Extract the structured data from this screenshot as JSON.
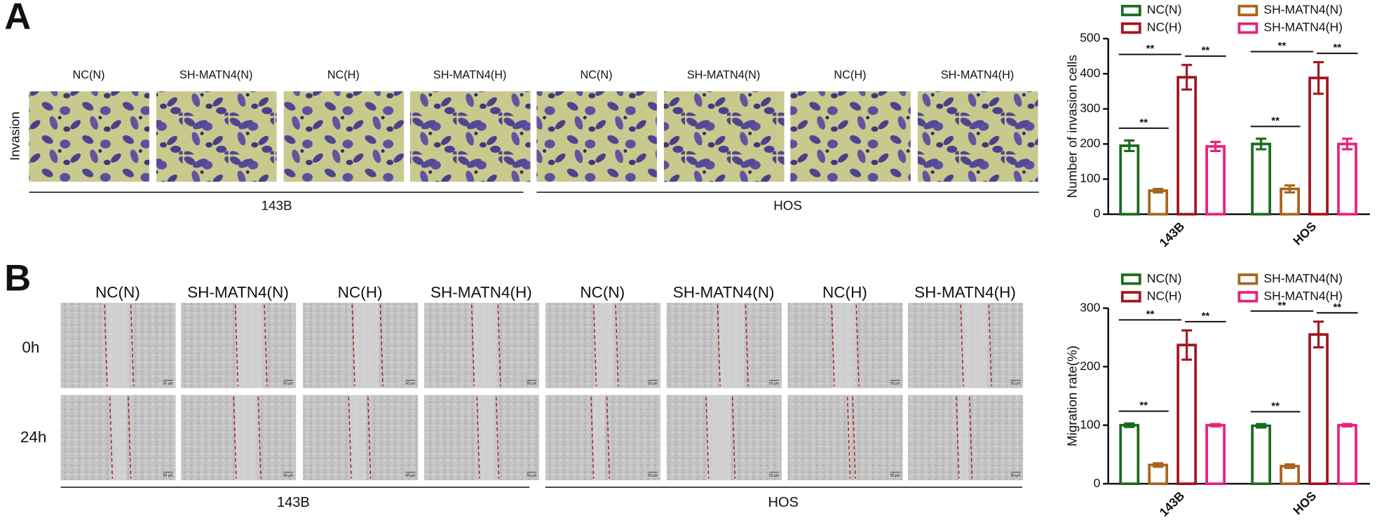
{
  "panel_a": {
    "letter": "A",
    "columns": [
      "NC(N)",
      "SH-MATN4(N)",
      "NC(H)",
      "SH-MATN4(H)",
      "NC(N)",
      "SH-MATN4(N)",
      "NC(H)",
      "SH-MATN4(H)"
    ],
    "row_label": "Invasion",
    "groups": [
      "143B",
      "HOS"
    ]
  },
  "panel_b": {
    "letter": "B",
    "columns": [
      "NC(N)",
      "SH-MATN4(N)",
      "NC(H)",
      "SH-MATN4(H)",
      "NC(N)",
      "SH-MATN4(N)",
      "NC(H)",
      "SH-MATN4(H)"
    ],
    "rows": [
      "0h",
      "24h"
    ],
    "groups": [
      "143B",
      "HOS"
    ],
    "scale_bar": "50 μm"
  },
  "chart_data": [
    {
      "type": "bar",
      "y_label": "Number of invasion cells",
      "categories": [
        "143B",
        "HOS"
      ],
      "series": [
        {
          "name": "NC(N)",
          "color": "#1b6b1f",
          "values": [
            195,
            200
          ],
          "errors": [
            15,
            15
          ]
        },
        {
          "name": "SH-MATN4(N)",
          "color": "#a8641e",
          "values": [
            67,
            72
          ],
          "errors": [
            5,
            10
          ]
        },
        {
          "name": "NC(H)",
          "color": "#a3161e",
          "values": [
            390,
            388
          ],
          "errors": [
            35,
            45
          ]
        },
        {
          "name": "SH-MATN4(H)",
          "color": "#e8227c",
          "values": [
            193,
            200
          ],
          "errors": [
            13,
            15
          ]
        }
      ],
      "ylim": [
        0,
        500
      ],
      "yticks": [
        0,
        100,
        200,
        300,
        400,
        500
      ],
      "annotations": [
        "**",
        "**",
        "**",
        "**",
        "**",
        "**"
      ]
    },
    {
      "type": "bar",
      "y_label": "Migration rate(%)",
      "categories": [
        "143B",
        "HOS"
      ],
      "series": [
        {
          "name": "NC(N)",
          "color": "#1b6b1f",
          "values": [
            100,
            99
          ],
          "errors": [
            3,
            3
          ]
        },
        {
          "name": "SH-MATN4(N)",
          "color": "#a8641e",
          "values": [
            32,
            30
          ],
          "errors": [
            3,
            3
          ]
        },
        {
          "name": "NC(H)",
          "color": "#a3161e",
          "values": [
            237,
            255
          ],
          "errors": [
            25,
            22
          ]
        },
        {
          "name": "SH-MATN4(H)",
          "color": "#e8227c",
          "values": [
            100,
            100
          ],
          "errors": [
            2,
            2
          ]
        }
      ],
      "ylim": [
        0,
        300
      ],
      "yticks": [
        0,
        100,
        200,
        300
      ],
      "annotations": [
        "**",
        "**",
        "**",
        "**",
        "**",
        "**"
      ]
    }
  ]
}
